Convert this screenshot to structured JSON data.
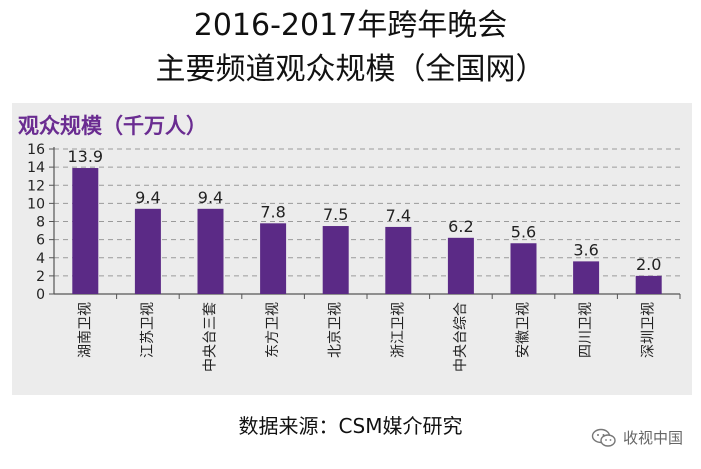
{
  "title_line1": "2016-2017年跨年晚会",
  "title_line2": "主要频道观众规模（全国网）",
  "source": "数据来源：CSM媒介研究",
  "watermark": {
    "text": "收视中国",
    "icon": "wechat-icon"
  },
  "colors": {
    "bar": "#5b2a86",
    "ylabel": "#6a2c91",
    "panel": "#ececec"
  },
  "chart_data": {
    "type": "bar",
    "ylabel": "观众规模（千万人）",
    "categories": [
      "湖南卫视",
      "江苏卫视",
      "中央台三套",
      "东方卫视",
      "北京卫视",
      "浙江卫视",
      "中央台综合",
      "安徽卫视",
      "四川卫视",
      "深圳卫视"
    ],
    "values": [
      13.9,
      9.4,
      9.4,
      7.8,
      7.5,
      7.4,
      6.2,
      5.6,
      3.6,
      2.0
    ],
    "value_labels": [
      "13.9",
      "9.4",
      "9.4",
      "7.8",
      "7.5",
      "7.4",
      "6.2",
      "5.6",
      "3.6",
      "2.0"
    ],
    "ylim": [
      0,
      16
    ],
    "yticks": [
      "0",
      "2",
      "4",
      "6",
      "8",
      "10",
      "12",
      "14",
      "16"
    ],
    "grid": true
  }
}
